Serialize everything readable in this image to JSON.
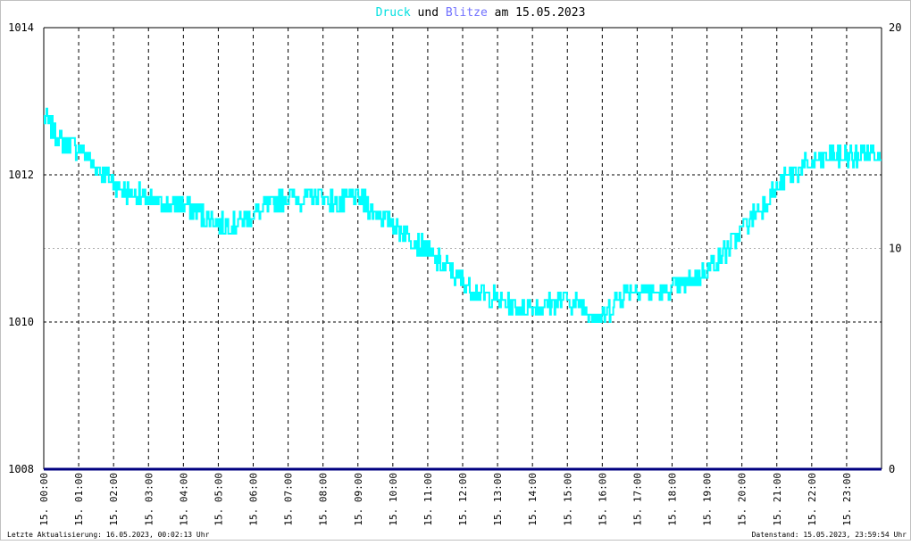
{
  "title": {
    "series1": "Druck",
    "connector1": "und",
    "series2": "Blitze",
    "connector2": "am",
    "date": "15.05.2023"
  },
  "colors": {
    "druck": "#00ffff",
    "blitze": "#7070ff",
    "baseline": "#000080",
    "grid": "#000000",
    "background": "#ffffff"
  },
  "footer": {
    "left": "Letzte Aktualisierung: 16.05.2023, 00:02:13 Uhr",
    "right": "Datenstand: 15.05.2023, 23:59:54 Uhr"
  },
  "chart_data": {
    "type": "line",
    "title": "Druck und Blitze am 15.05.2023",
    "xlabel": "",
    "ylabel": "",
    "y_left_lim": [
      1008,
      1014
    ],
    "y_left_ticks": [
      "1014",
      "1012",
      "1010",
      "1008"
    ],
    "y_right_lim": [
      0,
      20
    ],
    "y_right_ticks": [
      "20",
      "10",
      "0"
    ],
    "x_ticks": [
      "15. 00:00",
      "15. 01:00",
      "15. 02:00",
      "15. 03:00",
      "15. 04:00",
      "15. 05:00",
      "15. 06:00",
      "15. 07:00",
      "15. 08:00",
      "15. 09:00",
      "15. 10:00",
      "15. 11:00",
      "15. 12:00",
      "15. 13:00",
      "15. 14:00",
      "15. 15:00",
      "15. 16:00",
      "15. 17:00",
      "15. 18:00",
      "15. 19:00",
      "15. 20:00",
      "15. 21:00",
      "15. 22:00",
      "15. 23:00"
    ],
    "grid": true,
    "series": [
      {
        "name": "Druck",
        "axis": "left",
        "hours": [
          0.0,
          0.25,
          0.5,
          0.75,
          1.0,
          1.25,
          1.5,
          1.75,
          2.0,
          2.25,
          2.5,
          2.75,
          3.0,
          3.25,
          3.5,
          3.75,
          4.0,
          4.25,
          4.5,
          4.75,
          5.0,
          5.25,
          5.5,
          5.75,
          6.0,
          6.25,
          6.5,
          6.75,
          7.0,
          7.25,
          7.5,
          7.75,
          8.0,
          8.25,
          8.5,
          8.75,
          9.0,
          9.25,
          9.5,
          9.75,
          10.0,
          10.25,
          10.5,
          10.75,
          11.0,
          11.25,
          11.5,
          11.75,
          12.0,
          12.25,
          12.5,
          12.75,
          13.0,
          13.25,
          13.5,
          13.75,
          14.0,
          14.25,
          14.5,
          14.75,
          15.0,
          15.25,
          15.5,
          15.75,
          16.0,
          16.25,
          16.5,
          16.75,
          17.0,
          17.25,
          17.5,
          17.75,
          18.0,
          18.25,
          18.5,
          18.75,
          19.0,
          19.25,
          19.5,
          19.75,
          20.0,
          20.25,
          20.5,
          20.75,
          21.0,
          21.25,
          21.5,
          21.75,
          22.0,
          22.25,
          22.5,
          22.75,
          23.0,
          23.25,
          23.5,
          23.75,
          24.0
        ],
        "values": [
          1012.8,
          1012.6,
          1012.45,
          1012.4,
          1012.35,
          1012.25,
          1012.1,
          1012.0,
          1011.9,
          1011.8,
          1011.75,
          1011.7,
          1011.65,
          1011.6,
          1011.6,
          1011.6,
          1011.6,
          1011.55,
          1011.45,
          1011.4,
          1011.35,
          1011.3,
          1011.35,
          1011.4,
          1011.45,
          1011.5,
          1011.6,
          1011.65,
          1011.7,
          1011.7,
          1011.65,
          1011.7,
          1011.7,
          1011.65,
          1011.6,
          1011.65,
          1011.7,
          1011.6,
          1011.5,
          1011.4,
          1011.35,
          1011.25,
          1011.15,
          1011.05,
          1010.95,
          1010.85,
          1010.75,
          1010.65,
          1010.55,
          1010.45,
          1010.4,
          1010.35,
          1010.3,
          1010.25,
          1010.2,
          1010.2,
          1010.2,
          1010.2,
          1010.25,
          1010.3,
          1010.3,
          1010.25,
          1010.2,
          1010.1,
          1010.05,
          1010.2,
          1010.35,
          1010.45,
          1010.45,
          1010.45,
          1010.4,
          1010.4,
          1010.45,
          1010.5,
          1010.55,
          1010.65,
          1010.75,
          1010.85,
          1010.95,
          1011.1,
          1011.25,
          1011.4,
          1011.55,
          1011.7,
          1011.8,
          1011.95,
          1012.05,
          1012.1,
          1012.15,
          1012.2,
          1012.25,
          1012.25,
          1012.25,
          1012.25,
          1012.3,
          1012.3,
          1012.3
        ]
      },
      {
        "name": "Blitze",
        "axis": "right",
        "hours": [
          0,
          24
        ],
        "values": [
          0,
          0
        ]
      }
    ]
  }
}
